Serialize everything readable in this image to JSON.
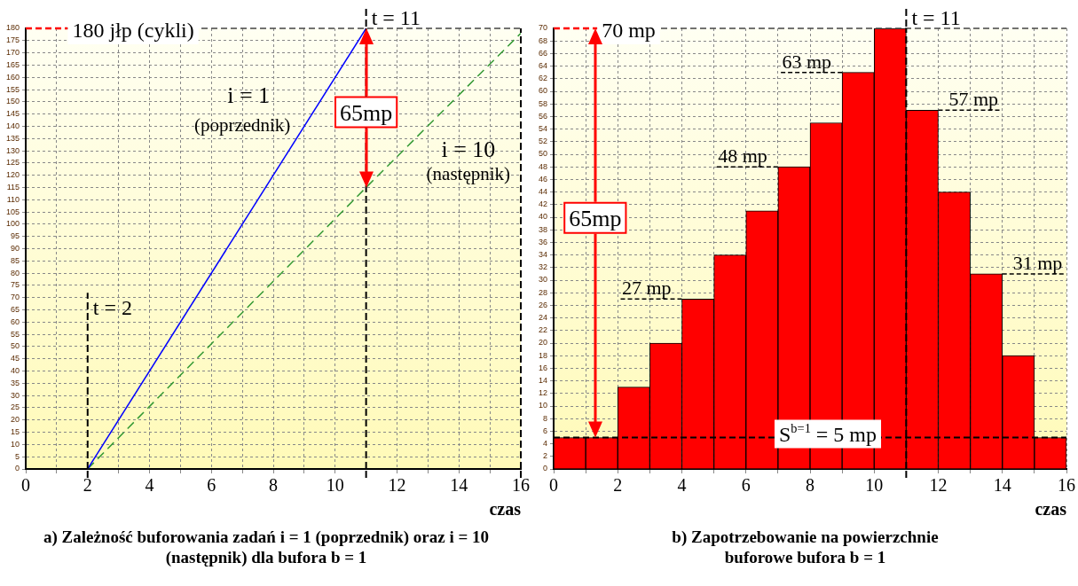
{
  "chart_data": [
    {
      "type": "line",
      "title": "a) Zależność buforowania zadań i = 1 (poprzednik) oraz i = 10 (następnik) dla bufora b = 1",
      "xlabel": "czas",
      "xlim": [
        0,
        16
      ],
      "xticks": [
        0,
        {
          "value": 1,
          "label": null
        },
        2,
        {
          "value": 3,
          "label": null
        },
        4,
        {
          "value": 5,
          "label": null
        },
        6,
        {
          "value": 7,
          "label": null
        },
        8,
        {
          "value": 9,
          "label": null
        },
        10,
        {
          "value": 11,
          "label": null
        },
        12,
        {
          "value": 13,
          "label": null
        },
        14,
        {
          "value": 15,
          "label": null
        },
        16
      ],
      "ylim": [
        0,
        180
      ],
      "yticks": [
        0,
        5,
        10,
        15,
        20,
        25,
        30,
        35,
        40,
        45,
        50,
        55,
        60,
        65,
        70,
        75,
        80,
        85,
        90,
        95,
        100,
        105,
        110,
        115,
        120,
        125,
        130,
        135,
        140,
        145,
        150,
        155,
        160,
        165,
        170,
        175,
        180
      ],
      "grid": true,
      "legend": false,
      "marker": "none",
      "series": [
        {
          "color": "#0000ff",
          "x": [
            2,
            11
          ],
          "values": [
            0,
            180
          ],
          "line_style": "solid"
        },
        {
          "color": "#339933",
          "x": [
            2,
            11,
            16
          ],
          "values": [
            0,
            115,
            178
          ],
          "line_style": "dashed"
        }
      ],
      "ref_lines": [
        {
          "axis": "y",
          "value": 180,
          "label": "180 jłp (cykli)",
          "color": "#ff0000"
        },
        {
          "axis": "x",
          "value": 2,
          "label": "t = 2",
          "color": "#000000"
        },
        {
          "axis": "x",
          "value": 11,
          "label": "t = 11",
          "color": "#000000"
        },
        {
          "axis": "x",
          "value": 16,
          "color": "#000000"
        }
      ],
      "annotations": [
        "i = 1",
        "(poprzednik)",
        "i = 10",
        "(następnik)",
        "65mp"
      ]
    },
    {
      "type": "histogram",
      "title": "b) Zapotrzebowanie na powierzchnie buforowe bufora b = 1",
      "xlabel": "czas",
      "bins": [
        0,
        1,
        2,
        3,
        4,
        5,
        6,
        7,
        8,
        9,
        10,
        11,
        12,
        13,
        14,
        15,
        16
      ],
      "values": [
        5,
        5,
        13,
        20,
        27,
        34,
        41,
        48,
        55,
        63,
        70,
        57,
        44,
        31,
        18,
        5
      ],
      "color": "#ff0000",
      "xlim": [
        0,
        16
      ],
      "xticks": [
        0,
        {
          "value": 1,
          "label": null
        },
        2,
        {
          "value": 3,
          "label": null
        },
        4,
        {
          "value": 5,
          "label": null
        },
        6,
        {
          "value": 7,
          "label": null
        },
        8,
        {
          "value": 9,
          "label": null
        },
        10,
        {
          "value": 11,
          "label": null
        },
        12,
        {
          "value": 13,
          "label": null
        },
        14,
        {
          "value": 15,
          "label": null
        },
        16
      ],
      "ylim": [
        0,
        70
      ],
      "yticks": [
        0,
        2,
        4,
        6,
        8,
        10,
        12,
        14,
        16,
        18,
        20,
        22,
        24,
        26,
        28,
        30,
        32,
        34,
        36,
        38,
        40,
        42,
        44,
        46,
        48,
        50,
        52,
        54,
        56,
        58,
        60,
        62,
        64,
        66,
        68,
        70
      ],
      "grid": true,
      "legend": false,
      "ref_lines": [
        {
          "axis": "y",
          "value": 70,
          "label": "70 mp",
          "color": "#ff0000"
        },
        {
          "axis": "x",
          "value": 11,
          "label": "t = 11",
          "color": "#000000"
        },
        {
          "axis": "y",
          "value": 5,
          "label": "S$^{b=1}$ = 5 mp",
          "color": "#000000"
        }
      ],
      "annotations": [
        "65mp",
        {
          "text": "27 mp",
          "x": 4.5,
          "y": 27
        },
        {
          "text": "48 mp",
          "x": 7.5,
          "y": 48
        },
        {
          "text": "63 mp",
          "x": 9.5,
          "y": 63
        },
        {
          "text": "57 mp",
          "x": 11.5,
          "y": 57
        },
        {
          "text": "31 mp",
          "x": 13.5,
          "y": 31
        }
      ]
    }
  ]
}
